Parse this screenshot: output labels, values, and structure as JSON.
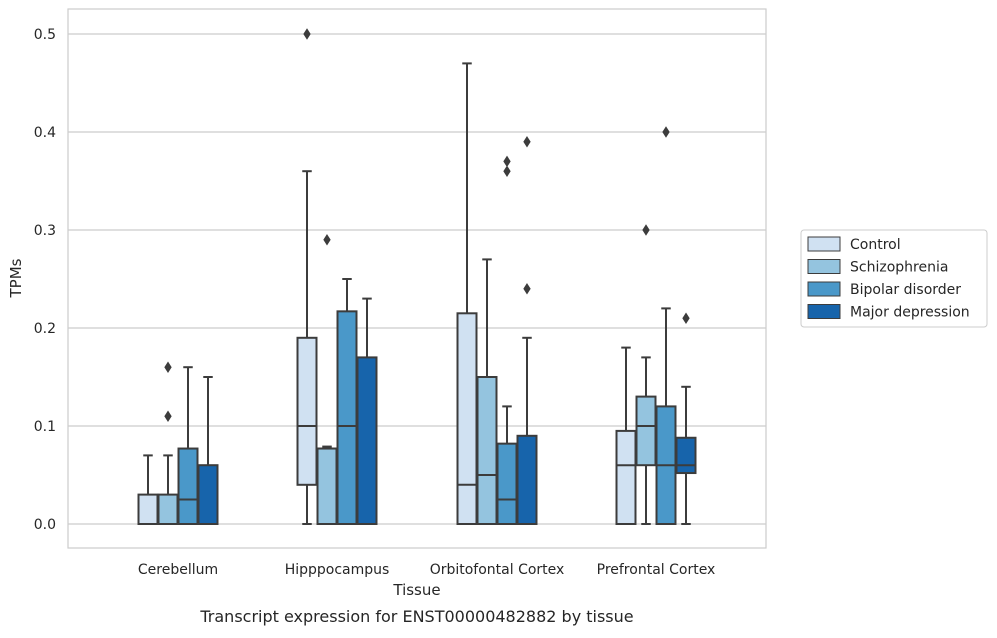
{
  "chart_data": {
    "type": "box",
    "title": "Transcript expression for ENST00000482882 by tissue",
    "xlabel": "Tissue",
    "ylabel": "TPMs",
    "ylim": [
      -0.025,
      0.525
    ],
    "yticks": [
      0.0,
      0.1,
      0.2,
      0.3,
      0.4,
      0.5
    ],
    "ytick_labels": [
      "0.0",
      "0.1",
      "0.2",
      "0.3",
      "0.4",
      "0.5"
    ],
    "grid": "horizontal",
    "legend_position": "right",
    "categories": [
      "Cerebellum",
      "Hipppocampus",
      "Orbitofontal Cortex",
      "Prefrontal Cortex"
    ],
    "series": [
      {
        "name": "Control",
        "color": "#d0e1f2",
        "boxes": [
          {
            "whislo": 0.0,
            "q1": 0.0,
            "med": 0.0,
            "q3": 0.03,
            "whishi": 0.07,
            "fliers": []
          },
          {
            "whislo": 0.0,
            "q1": 0.04,
            "med": 0.1,
            "q3": 0.19,
            "whishi": 0.36,
            "fliers": [
              0.5
            ]
          },
          {
            "whislo": 0.0,
            "q1": 0.0,
            "med": 0.04,
            "q3": 0.215,
            "whishi": 0.47,
            "fliers": []
          },
          {
            "whislo": 0.0,
            "q1": 0.0,
            "med": 0.06,
            "q3": 0.095,
            "whishi": 0.18,
            "fliers": []
          }
        ]
      },
      {
        "name": "Schizophrenia",
        "color": "#94c4df",
        "boxes": [
          {
            "whislo": 0.0,
            "q1": 0.0,
            "med": 0.0,
            "q3": 0.03,
            "whishi": 0.07,
            "fliers": [
              0.11,
              0.16
            ]
          },
          {
            "whislo": 0.0,
            "q1": 0.0,
            "med": 0.077,
            "q3": 0.077,
            "whishi": 0.079,
            "fliers": [
              0.29
            ]
          },
          {
            "whislo": 0.0,
            "q1": 0.0,
            "med": 0.05,
            "q3": 0.15,
            "whishi": 0.27,
            "fliers": []
          },
          {
            "whislo": 0.0,
            "q1": 0.06,
            "med": 0.1,
            "q3": 0.13,
            "whishi": 0.17,
            "fliers": [
              0.3
            ]
          }
        ]
      },
      {
        "name": "Bipolar disorder",
        "color": "#4a98c9",
        "boxes": [
          {
            "whislo": 0.0,
            "q1": 0.0,
            "med": 0.025,
            "q3": 0.077,
            "whishi": 0.16,
            "fliers": []
          },
          {
            "whislo": 0.0,
            "q1": 0.0,
            "med": 0.1,
            "q3": 0.217,
            "whishi": 0.25,
            "fliers": []
          },
          {
            "whislo": 0.0,
            "q1": 0.0,
            "med": 0.025,
            "q3": 0.082,
            "whishi": 0.12,
            "fliers": [
              0.36,
              0.37
            ]
          },
          {
            "whislo": 0.0,
            "q1": 0.0,
            "med": 0.06,
            "q3": 0.12,
            "whishi": 0.22,
            "fliers": [
              0.4
            ]
          }
        ]
      },
      {
        "name": "Major depression",
        "color": "#1764ab",
        "boxes": [
          {
            "whislo": 0.0,
            "q1": 0.0,
            "med": 0.0,
            "q3": 0.06,
            "whishi": 0.15,
            "fliers": []
          },
          {
            "whislo": 0.0,
            "q1": 0.0,
            "med": 0.0,
            "q3": 0.17,
            "whishi": 0.23,
            "fliers": []
          },
          {
            "whislo": 0.0,
            "q1": 0.0,
            "med": 0.0,
            "q3": 0.09,
            "whishi": 0.19,
            "fliers": [
              0.24,
              0.39
            ]
          },
          {
            "whislo": 0.0,
            "q1": 0.052,
            "med": 0.06,
            "q3": 0.088,
            "whishi": 0.14,
            "fliers": [
              0.21
            ]
          }
        ]
      }
    ]
  }
}
